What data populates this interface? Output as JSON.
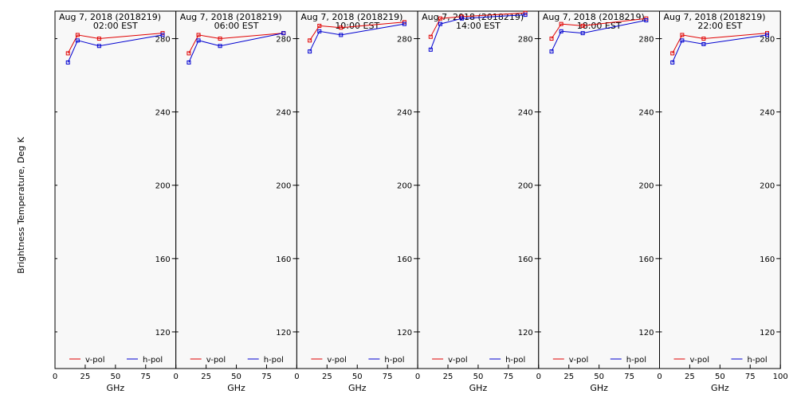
{
  "figure": {
    "ylabel": "Brightness Temperature, Deg K",
    "xlabel": "GHz"
  },
  "colors": {
    "v_pol": "#e00000",
    "h_pol": "#0000d0",
    "panel_bg": "#f8f8f8"
  },
  "chart_data": [
    {
      "type": "line",
      "title": "Aug  7, 2018 (2018219)",
      "subtitle": "02:00 EST",
      "xlabel": "GHz",
      "ylabel": "Brightness Temperature, Deg K",
      "xlim": [
        0,
        100
      ],
      "ylim": [
        100,
        295
      ],
      "yticks": [
        120,
        160,
        200,
        240,
        280
      ],
      "xticks": [
        0,
        25,
        50,
        75
      ],
      "x": [
        10.7,
        18.7,
        36.5,
        89.0
      ],
      "series": [
        {
          "name": "v-pol",
          "values": [
            272,
            282,
            280,
            283
          ]
        },
        {
          "name": "h-pol",
          "values": [
            267,
            279,
            276,
            282
          ]
        }
      ],
      "legend": "bottom"
    },
    {
      "type": "line",
      "title": "Aug  7, 2018 (2018219)",
      "subtitle": "06:00 EST",
      "xlabel": "GHz",
      "xlim": [
        0,
        100
      ],
      "ylim": [
        100,
        295
      ],
      "yticks": [
        120,
        160,
        200,
        240,
        280
      ],
      "xticks": [
        0,
        25,
        50,
        75
      ],
      "x": [
        10.7,
        18.7,
        36.5,
        89.0
      ],
      "series": [
        {
          "name": "v-pol",
          "values": [
            272,
            282,
            280,
            283
          ]
        },
        {
          "name": "h-pol",
          "values": [
            267,
            279,
            276,
            283
          ]
        }
      ],
      "legend": "bottom"
    },
    {
      "type": "line",
      "title": "Aug  7, 2018 (2018219)",
      "subtitle": "10:00 EST",
      "xlabel": "GHz",
      "xlim": [
        0,
        100
      ],
      "ylim": [
        100,
        295
      ],
      "yticks": [
        120,
        160,
        200,
        240,
        280
      ],
      "xticks": [
        0,
        25,
        50,
        75
      ],
      "x": [
        10.7,
        18.7,
        36.5,
        89.0
      ],
      "series": [
        {
          "name": "v-pol",
          "values": [
            279,
            287,
            286,
            289
          ]
        },
        {
          "name": "h-pol",
          "values": [
            273,
            284,
            282,
            288
          ]
        }
      ],
      "legend": "bottom"
    },
    {
      "type": "line",
      "title": "Aug  7, 2018 (2018219)",
      "subtitle": "14:00 EST",
      "xlabel": "GHz",
      "xlim": [
        0,
        100
      ],
      "ylim": [
        100,
        295
      ],
      "yticks": [
        120,
        160,
        200,
        240,
        280
      ],
      "xticks": [
        0,
        25,
        50,
        75
      ],
      "x": [
        10.7,
        18.7,
        36.5,
        89.0
      ],
      "series": [
        {
          "name": "v-pol",
          "values": [
            281,
            291,
            292,
            294
          ]
        },
        {
          "name": "h-pol",
          "values": [
            274,
            288,
            291,
            293
          ]
        }
      ],
      "legend": "bottom"
    },
    {
      "type": "line",
      "title": "Aug  7, 2018 (2018219)",
      "subtitle": "18:00 EST",
      "xlabel": "GHz",
      "xlim": [
        0,
        100
      ],
      "ylim": [
        100,
        295
      ],
      "yticks": [
        120,
        160,
        200,
        240,
        280
      ],
      "xticks": [
        0,
        25,
        50,
        75
      ],
      "x": [
        10.7,
        18.7,
        36.5,
        89.0
      ],
      "series": [
        {
          "name": "v-pol",
          "values": [
            280,
            288,
            287,
            291
          ]
        },
        {
          "name": "h-pol",
          "values": [
            273,
            284,
            283,
            290
          ]
        }
      ],
      "legend": "bottom"
    },
    {
      "type": "line",
      "title": "Aug  7, 2018 (2018219)",
      "subtitle": "22:00 EST",
      "xlabel": "GHz",
      "xlim": [
        0,
        100
      ],
      "ylim": [
        100,
        295
      ],
      "yticks": [
        120,
        160,
        200,
        240,
        280
      ],
      "xticks": [
        0,
        25,
        50,
        75,
        100
      ],
      "x": [
        10.7,
        18.7,
        36.5,
        89.0
      ],
      "series": [
        {
          "name": "v-pol",
          "values": [
            272,
            282,
            280,
            283
          ]
        },
        {
          "name": "h-pol",
          "values": [
            267,
            279,
            277,
            282
          ]
        }
      ],
      "legend": "bottom"
    }
  ]
}
